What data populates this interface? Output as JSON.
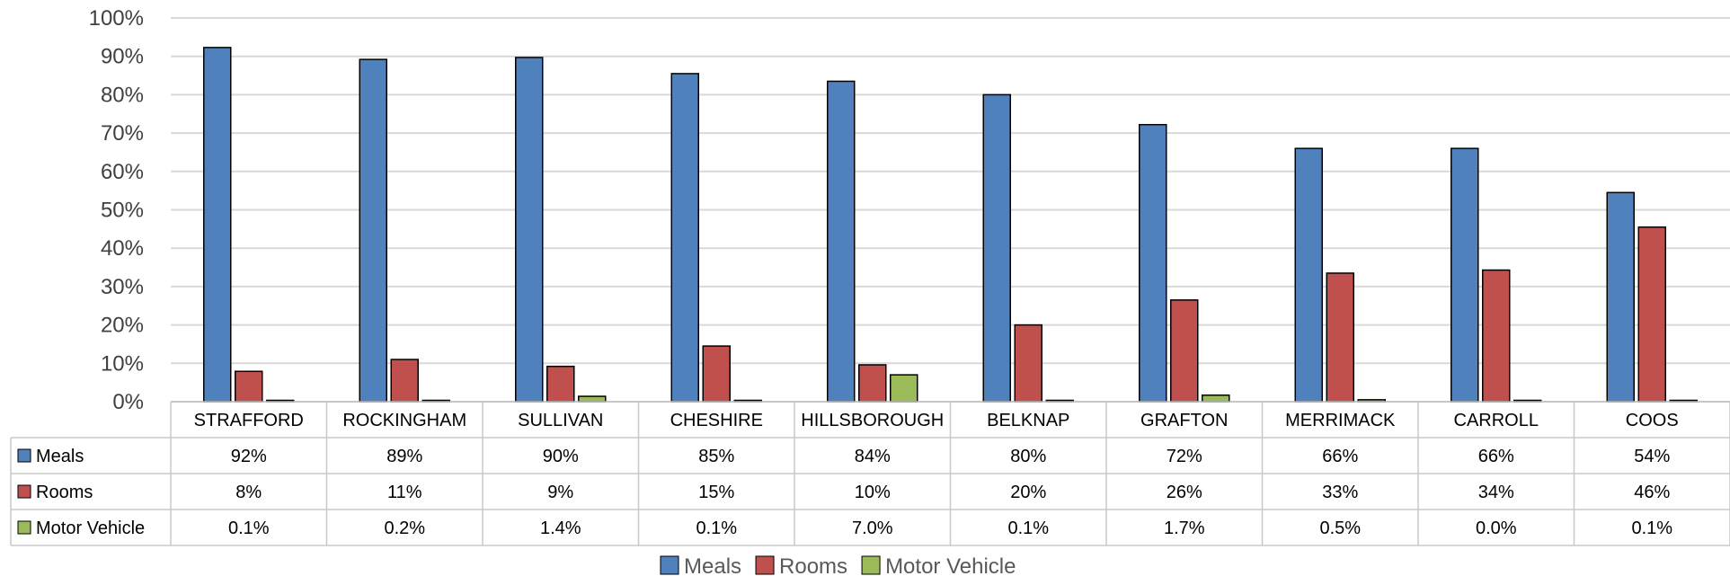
{
  "chart_data": {
    "type": "bar",
    "categories": [
      "STRAFFORD",
      "ROCKINGHAM",
      "SULLIVAN",
      "CHESHIRE",
      "HILLSBOROUGH",
      "BELKNAP",
      "GRAFTON",
      "MERRIMACK",
      "CARROLL",
      "COOS"
    ],
    "series": [
      {
        "name": "Meals",
        "color": "#4f81bd",
        "values": [
          92.3,
          89.2,
          89.7,
          85.5,
          83.5,
          80.0,
          72.2,
          66.0,
          66.0,
          54.5
        ],
        "labels": [
          "92%",
          "89%",
          "90%",
          "85%",
          "84%",
          "80%",
          "72%",
          "66%",
          "66%",
          "54%"
        ]
      },
      {
        "name": "Rooms",
        "color": "#c0504d",
        "values": [
          7.9,
          11.0,
          9.2,
          14.5,
          9.6,
          20.0,
          26.5,
          33.5,
          34.3,
          45.5
        ],
        "labels": [
          "8%",
          "11%",
          "9%",
          "15%",
          "10%",
          "20%",
          "26%",
          "33%",
          "34%",
          "46%"
        ]
      },
      {
        "name": "Motor Vehicle",
        "color": "#9bbb59",
        "values": [
          0.1,
          0.2,
          1.4,
          0.1,
          7.0,
          0.1,
          1.7,
          0.5,
          0.0,
          0.1
        ],
        "labels": [
          "0.1%",
          "0.2%",
          "1.4%",
          "0.1%",
          "7.0%",
          "0.1%",
          "1.7%",
          "0.5%",
          "0.0%",
          "0.1%"
        ]
      }
    ],
    "yticks": [
      "0%",
      "10%",
      "20%",
      "30%",
      "40%",
      "50%",
      "60%",
      "70%",
      "80%",
      "90%",
      "100%"
    ],
    "ylim": [
      0,
      100
    ],
    "grid": true,
    "legend": "bottom",
    "data_table": true
  }
}
